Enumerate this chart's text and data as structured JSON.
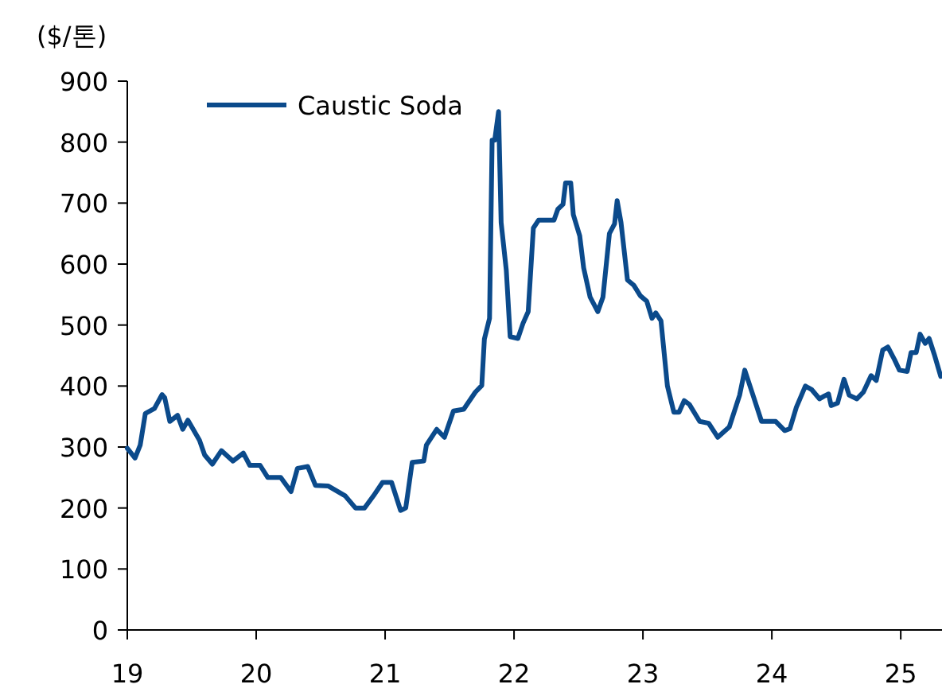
{
  "chart_data": {
    "type": "line",
    "ylabel": "($/톤)",
    "legend": "top left",
    "xlim": [
      19,
      25.32
    ],
    "xticks": [
      {
        "value": 19,
        "label": "19"
      },
      {
        "value": 20,
        "label": "20"
      },
      {
        "value": 21,
        "label": "21"
      },
      {
        "value": 22,
        "label": "22"
      },
      {
        "value": 23,
        "label": "23"
      },
      {
        "value": 24,
        "label": "24"
      },
      {
        "value": 25,
        "label": "25"
      }
    ],
    "ylim": [
      0,
      900
    ],
    "yticks": [
      0,
      100,
      200,
      300,
      400,
      500,
      600,
      700,
      800,
      900
    ],
    "series": [
      {
        "name": "Caustic Soda",
        "color": "#0b4a8b",
        "x": [
          19.0,
          19.06,
          19.1,
          19.14,
          19.21,
          19.27,
          19.29,
          19.33,
          19.39,
          19.43,
          19.47,
          19.56,
          19.6,
          19.66,
          19.73,
          19.82,
          19.9,
          19.95,
          20.03,
          20.09,
          20.19,
          20.27,
          20.32,
          20.4,
          20.46,
          20.56,
          20.69,
          20.77,
          20.84,
          20.91,
          20.98,
          21.05,
          21.12,
          21.16,
          21.21,
          21.3,
          21.32,
          21.4,
          21.46,
          21.53,
          21.61,
          21.7,
          21.75,
          21.77,
          21.81,
          21.83,
          21.85,
          21.88,
          21.9,
          21.94,
          21.97,
          22.03,
          22.07,
          22.11,
          22.15,
          22.19,
          22.31,
          22.34,
          22.38,
          22.4,
          22.44,
          22.46,
          22.51,
          22.54,
          22.59,
          22.65,
          22.69,
          22.74,
          22.78,
          22.8,
          22.83,
          22.88,
          22.93,
          22.98,
          23.03,
          23.07,
          23.1,
          23.14,
          23.19,
          23.24,
          23.28,
          23.32,
          23.36,
          23.44,
          23.51,
          23.58,
          23.67,
          23.75,
          23.79,
          23.86,
          23.92,
          24.03,
          24.1,
          24.14,
          24.19,
          24.26,
          24.31,
          24.37,
          24.41,
          24.44,
          24.46,
          24.51,
          24.56,
          24.6,
          24.66,
          24.71,
          24.77,
          24.81,
          24.86,
          24.9,
          24.95,
          24.99,
          25.05,
          25.08,
          25.12,
          25.15,
          25.19,
          25.22,
          25.26,
          25.31
        ],
        "values": [
          298,
          282,
          303,
          355,
          363,
          386,
          381,
          342,
          352,
          329,
          344,
          311,
          287,
          272,
          294,
          277,
          290,
          270,
          270,
          250,
          250,
          227,
          265,
          268,
          237,
          236,
          220,
          200,
          200,
          220,
          242,
          242,
          196,
          200,
          275,
          277,
          303,
          329,
          316,
          359,
          362,
          390,
          401,
          477,
          511,
          803,
          803,
          850,
          668,
          590,
          481,
          478,
          503,
          522,
          659,
          672,
          672,
          690,
          698,
          733,
          733,
          681,
          646,
          594,
          546,
          522,
          546,
          650,
          666,
          704,
          668,
          574,
          565,
          548,
          539,
          511,
          520,
          507,
          400,
          357,
          357,
          376,
          370,
          342,
          339,
          316,
          333,
          385,
          426,
          381,
          342,
          342,
          327,
          330,
          365,
          400,
          394,
          379,
          384,
          387,
          368,
          372,
          411,
          385,
          379,
          390,
          417,
          409,
          459,
          464,
          444,
          426,
          424,
          455,
          455,
          485,
          470,
          478,
          452,
          416
        ]
      }
    ]
  }
}
